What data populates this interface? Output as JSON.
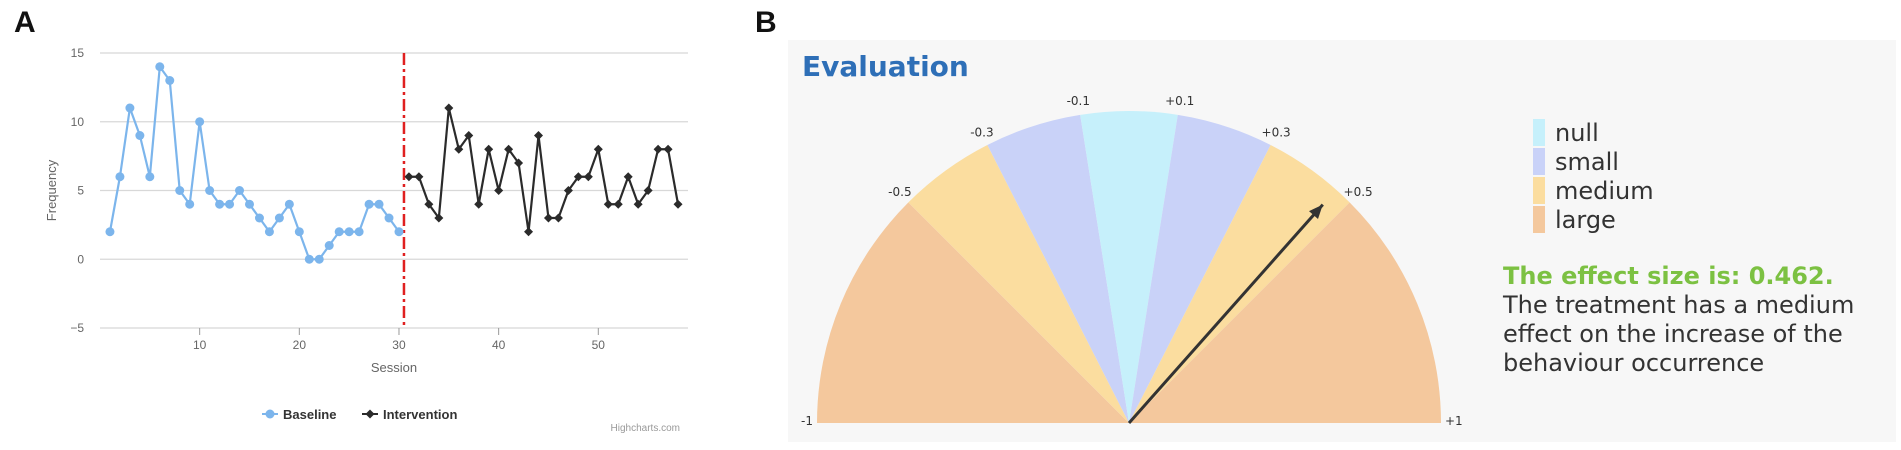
{
  "panels": {
    "a": {
      "letter": "A"
    },
    "b": {
      "letter": "B"
    }
  },
  "chart_data": [
    {
      "type": "line",
      "xlabel": "Session",
      "ylabel": "Frequency",
      "xlim": [
        0,
        59
      ],
      "ylim": [
        -5,
        15
      ],
      "x_ticks": [
        10,
        20,
        30,
        40,
        50
      ],
      "y_ticks": [
        15,
        10,
        5,
        0,
        -5
      ],
      "grid": true,
      "legend": "bottom-center",
      "phase_change_x": 30.5,
      "credit": "Highcharts.com",
      "series": [
        {
          "name": "Baseline",
          "color": "#7cb5ec",
          "x": [
            1,
            2,
            3,
            4,
            5,
            6,
            7,
            8,
            9,
            10,
            11,
            12,
            13,
            14,
            15,
            16,
            17,
            18,
            19,
            20,
            21,
            22,
            23,
            24,
            25,
            26,
            27,
            28,
            29,
            30
          ],
          "values": [
            2,
            6,
            11,
            9,
            6,
            14,
            13,
            5,
            4,
            10,
            5,
            4,
            4,
            5,
            4,
            3,
            2,
            3,
            4,
            2,
            0,
            0,
            1,
            2,
            2,
            2,
            4,
            4,
            3,
            2
          ]
        },
        {
          "name": "Intervention",
          "color": "#2b2b2b",
          "x": [
            31,
            32,
            33,
            34,
            35,
            36,
            37,
            38,
            39,
            40,
            41,
            42,
            43,
            44,
            45,
            46,
            47,
            48,
            49,
            50,
            51,
            52,
            53,
            54,
            55,
            56,
            57,
            58
          ],
          "values": [
            6,
            6,
            4,
            3,
            11,
            8,
            9,
            4,
            8,
            5,
            8,
            7,
            2,
            9,
            3,
            3,
            5,
            6,
            6,
            8,
            4,
            4,
            6,
            4,
            5,
            8,
            8,
            4
          ]
        }
      ]
    },
    {
      "type": "gauge",
      "title": "Evaluation",
      "range": [
        -1,
        1
      ],
      "value": 0.462,
      "tick_labels": [
        {
          "value": -1,
          "label": "-1"
        },
        {
          "value": -0.5,
          "label": "-0.5"
        },
        {
          "value": -0.3,
          "label": "-0.3"
        },
        {
          "value": -0.1,
          "label": "-0.1"
        },
        {
          "value": 0.1,
          "label": "+0.1"
        },
        {
          "value": 0.3,
          "label": "+0.3"
        },
        {
          "value": 0.5,
          "label": "+0.5"
        },
        {
          "value": 1,
          "label": "+1"
        }
      ],
      "bands": [
        {
          "from": -1,
          "to": -0.5,
          "category": "large"
        },
        {
          "from": -0.5,
          "to": -0.3,
          "category": "medium"
        },
        {
          "from": -0.3,
          "to": -0.1,
          "category": "small"
        },
        {
          "from": -0.1,
          "to": 0.1,
          "category": "null"
        },
        {
          "from": 0.1,
          "to": 0.3,
          "category": "small"
        },
        {
          "from": 0.3,
          "to": 0.5,
          "category": "medium"
        },
        {
          "from": 0.5,
          "to": 1,
          "category": "large"
        }
      ],
      "legend": [
        {
          "label": "null",
          "color": "#c6f0fb"
        },
        {
          "label": "small",
          "color": "#c9d2f8"
        },
        {
          "label": "medium",
          "color": "#fbdd9f"
        },
        {
          "label": "large",
          "color": "#f4c89d"
        }
      ],
      "result_heading": "The effect size is: 0.462.",
      "result_text": "The treatment has a medium effect on the increase of the behaviour occurrence"
    }
  ]
}
